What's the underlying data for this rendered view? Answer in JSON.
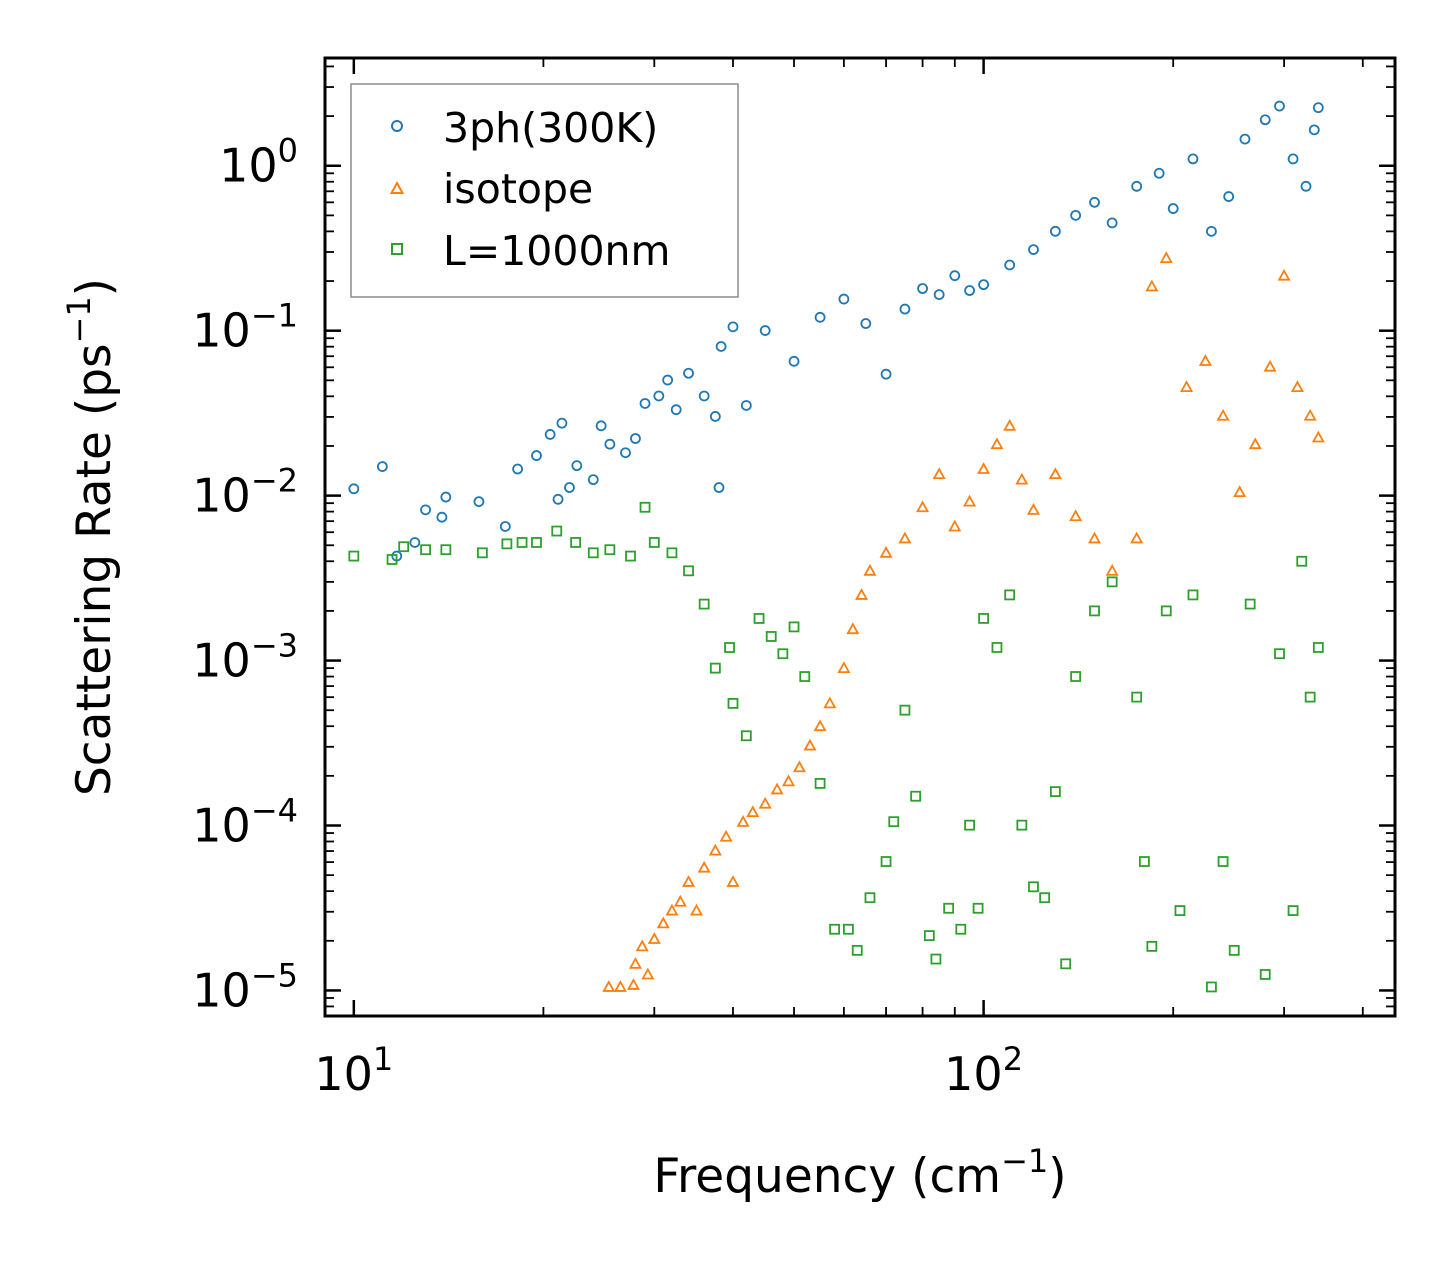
{
  "chart_data": {
    "type": "scatter",
    "xscale": "log",
    "yscale": "log",
    "xlim": [
      9.0,
      450.0
    ],
    "ylim": [
      7e-06,
      4.5
    ],
    "xlabel": "Frequency (cm",
    "xlabel_unit_exp": "−1",
    "xlabel_close": ")",
    "ylabel": "Scattering Rate (ps",
    "ylabel_unit_exp": "−1",
    "ylabel_close": ")",
    "x_ticks": [
      {
        "value": 10,
        "base": "10",
        "exp": "1"
      },
      {
        "value": 100,
        "base": "10",
        "exp": "2"
      }
    ],
    "y_ticks": [
      {
        "value": 1,
        "base": "10",
        "exp": "0"
      },
      {
        "value": 0.1,
        "base": "10",
        "exp": "−1"
      },
      {
        "value": 0.01,
        "base": "10",
        "exp": "−2"
      },
      {
        "value": 0.001,
        "base": "10",
        "exp": "−3"
      },
      {
        "value": 0.0001,
        "base": "10",
        "exp": "−4"
      },
      {
        "value": 1e-05,
        "base": "10",
        "exp": "−5"
      }
    ],
    "legend_position": "top-left",
    "series": [
      {
        "name": "3ph(300K)",
        "marker": "circle",
        "color": "#1f77b4",
        "points": [
          [
            10.0,
            0.011
          ],
          [
            11.1,
            0.015
          ],
          [
            11.7,
            0.0043
          ],
          [
            12.5,
            0.0052
          ],
          [
            13.0,
            0.0082
          ],
          [
            13.8,
            0.0074
          ],
          [
            14.0,
            0.0098
          ],
          [
            15.8,
            0.0092
          ],
          [
            17.4,
            0.0065
          ],
          [
            18.2,
            0.0145
          ],
          [
            19.5,
            0.0175
          ],
          [
            20.5,
            0.0235
          ],
          [
            21.1,
            0.0095
          ],
          [
            21.4,
            0.0275
          ],
          [
            22.0,
            0.0112
          ],
          [
            22.6,
            0.0152
          ],
          [
            24.0,
            0.0125
          ],
          [
            24.7,
            0.0265
          ],
          [
            25.5,
            0.0205
          ],
          [
            27.0,
            0.0182
          ],
          [
            28.0,
            0.0222
          ],
          [
            29.0,
            0.0362
          ],
          [
            30.5,
            0.0402
          ],
          [
            31.5,
            0.0502
          ],
          [
            32.5,
            0.0332
          ],
          [
            34.0,
            0.0552
          ],
          [
            36.0,
            0.0402
          ],
          [
            37.5,
            0.0302
          ],
          [
            38.0,
            0.0112
          ],
          [
            38.3,
            0.0802
          ],
          [
            40.0,
            0.1055
          ],
          [
            42.0,
            0.0352
          ],
          [
            45.0,
            0.1002
          ],
          [
            50.0,
            0.0652
          ],
          [
            55.0,
            0.1205
          ],
          [
            60.0,
            0.1555
          ],
          [
            65.0,
            0.1105
          ],
          [
            70.0,
            0.0545
          ],
          [
            75.0,
            0.1352
          ],
          [
            80.0,
            0.1802
          ],
          [
            85.0,
            0.1655
          ],
          [
            90.0,
            0.2155
          ],
          [
            95.0,
            0.1752
          ],
          [
            100.0,
            0.1902
          ],
          [
            110.0,
            0.2502
          ],
          [
            120.0,
            0.3102
          ],
          [
            130.0,
            0.4005
          ],
          [
            140.0,
            0.5002
          ],
          [
            150.0,
            0.6002
          ],
          [
            160.0,
            0.4502
          ],
          [
            175.0,
            0.7502
          ],
          [
            190.0,
            0.9002
          ],
          [
            200.0,
            0.5502
          ],
          [
            215.0,
            1.1005
          ],
          [
            230.0,
            0.4002
          ],
          [
            245.0,
            0.6502
          ],
          [
            260.0,
            1.4502
          ],
          [
            280.0,
            1.9002
          ],
          [
            295.0,
            2.3005
          ],
          [
            310.0,
            1.1002
          ],
          [
            325.0,
            0.7502
          ],
          [
            335.0,
            1.6502
          ],
          [
            340.0,
            2.2502
          ]
        ]
      },
      {
        "name": "isotope",
        "marker": "triangle",
        "color": "#ff7f0e",
        "points": [
          [
            25.4,
            1.05e-05
          ],
          [
            26.5,
            1.05e-05
          ],
          [
            27.8,
            1.08e-05
          ],
          [
            28.0,
            1.45e-05
          ],
          [
            28.7,
            1.85e-05
          ],
          [
            29.3,
            1.25e-05
          ],
          [
            30.0,
            2.05e-05
          ],
          [
            31.0,
            2.55e-05
          ],
          [
            32.0,
            3.05e-05
          ],
          [
            33.0,
            3.45e-05
          ],
          [
            34.0,
            4.55e-05
          ],
          [
            35.0,
            3.05e-05
          ],
          [
            36.0,
            5.55e-05
          ],
          [
            37.5,
            7.05e-05
          ],
          [
            39.0,
            8.55e-05
          ],
          [
            40.0,
            4.55e-05
          ],
          [
            41.5,
            0.0001052
          ],
          [
            43.0,
            0.0001205
          ],
          [
            45.0,
            0.0001355
          ],
          [
            47.0,
            0.0001655
          ],
          [
            49.0,
            0.0001852
          ],
          [
            51.0,
            0.0002255
          ],
          [
            53.0,
            0.0003052
          ],
          [
            55.0,
            0.0004002
          ],
          [
            57.0,
            0.0005502
          ],
          [
            60.0,
            0.0009002
          ],
          [
            62.0,
            0.0015502
          ],
          [
            64.0,
            0.0025002
          ],
          [
            66.0,
            0.0035002
          ],
          [
            70.0,
            0.0045002
          ],
          [
            75.0,
            0.0055002
          ],
          [
            80.0,
            0.0085002
          ],
          [
            85.0,
            0.0135002
          ],
          [
            90.0,
            0.0065002
          ],
          [
            95.0,
            0.0092002
          ],
          [
            100.0,
            0.0145002
          ],
          [
            105.0,
            0.0205002
          ],
          [
            110.0,
            0.0265002
          ],
          [
            115.0,
            0.0125002
          ],
          [
            120.0,
            0.0082002
          ],
          [
            130.0,
            0.0135002
          ],
          [
            140.0,
            0.0075002
          ],
          [
            150.0,
            0.0055002
          ],
          [
            160.0,
            0.0035002
          ],
          [
            175.0,
            0.0055002
          ],
          [
            185.0,
            0.1855002
          ],
          [
            195.0,
            0.2755002
          ],
          [
            210.0,
            0.0455002
          ],
          [
            225.0,
            0.0655002
          ],
          [
            240.0,
            0.0305002
          ],
          [
            255.0,
            0.0105002
          ],
          [
            270.0,
            0.0205002
          ],
          [
            285.0,
            0.0605002
          ],
          [
            300.0,
            0.2155002
          ],
          [
            315.0,
            0.0455002
          ],
          [
            330.0,
            0.0305002
          ],
          [
            340.0,
            0.0225002
          ]
        ]
      },
      {
        "name": "L=1000nm",
        "marker": "square",
        "color": "#2ca02c",
        "points": [
          [
            10.0,
            0.0043
          ],
          [
            11.5,
            0.0041
          ],
          [
            12.0,
            0.0049
          ],
          [
            13.0,
            0.0047
          ],
          [
            14.0,
            0.0047
          ],
          [
            16.0,
            0.0045
          ],
          [
            17.5,
            0.0051
          ],
          [
            18.5,
            0.0052
          ],
          [
            19.5,
            0.0052
          ],
          [
            21.0,
            0.0061
          ],
          [
            22.5,
            0.0052
          ],
          [
            24.0,
            0.0045
          ],
          [
            25.5,
            0.0047
          ],
          [
            27.5,
            0.0043
          ],
          [
            29.0,
            0.0085
          ],
          [
            30.0,
            0.0052
          ],
          [
            32.0,
            0.0045
          ],
          [
            34.0,
            0.0035
          ],
          [
            36.0,
            0.0022
          ],
          [
            37.5,
            0.0009
          ],
          [
            39.5,
            0.0012
          ],
          [
            40.0,
            0.00055
          ],
          [
            42.0,
            0.00035
          ],
          [
            44.0,
            0.0018
          ],
          [
            46.0,
            0.0014
          ],
          [
            48.0,
            0.0011
          ],
          [
            50.0,
            0.0016
          ],
          [
            52.0,
            0.0008
          ],
          [
            55.0,
            0.00018
          ],
          [
            58.0,
            2.35e-05
          ],
          [
            61.0,
            2.35e-05
          ],
          [
            63.0,
            1.75e-05
          ],
          [
            66.0,
            3.65e-05
          ],
          [
            70.0,
            6.05e-05
          ],
          [
            72.0,
            0.0001055
          ],
          [
            75.0,
            0.0005005
          ],
          [
            78.0,
            0.0001505
          ],
          [
            82.0,
            2.15e-05
          ],
          [
            84.0,
            1.55e-05
          ],
          [
            88.0,
            3.15e-05
          ],
          [
            92.0,
            2.35e-05
          ],
          [
            95.0,
            0.0001005
          ],
          [
            98.0,
            3.15e-05
          ],
          [
            100.0,
            0.0018005
          ],
          [
            105.0,
            0.0012005
          ],
          [
            110.0,
            0.0025005
          ],
          [
            115.0,
            0.0001005
          ],
          [
            120.0,
            4.25e-05
          ],
          [
            125.0,
            3.65e-05
          ],
          [
            130.0,
            0.0001605
          ],
          [
            135.0,
            1.45e-05
          ],
          [
            140.0,
            0.0008005
          ],
          [
            150.0,
            0.0020005
          ],
          [
            160.0,
            0.0030005
          ],
          [
            175.0,
            0.0006005
          ],
          [
            180.0,
            6.05e-05
          ],
          [
            185.0,
            1.85e-05
          ],
          [
            195.0,
            0.0020005
          ],
          [
            205.0,
            3.05e-05
          ],
          [
            215.0,
            0.0025005
          ],
          [
            230.0,
            1.05e-05
          ],
          [
            240.0,
            6.05e-05
          ],
          [
            250.0,
            1.75e-05
          ],
          [
            265.0,
            0.0022005
          ],
          [
            280.0,
            1.25e-05
          ],
          [
            295.0,
            0.0011005
          ],
          [
            310.0,
            3.05e-05
          ],
          [
            320.0,
            0.0040005
          ],
          [
            330.0,
            0.0006005
          ],
          [
            340.0,
            0.0012005
          ]
        ]
      }
    ]
  }
}
